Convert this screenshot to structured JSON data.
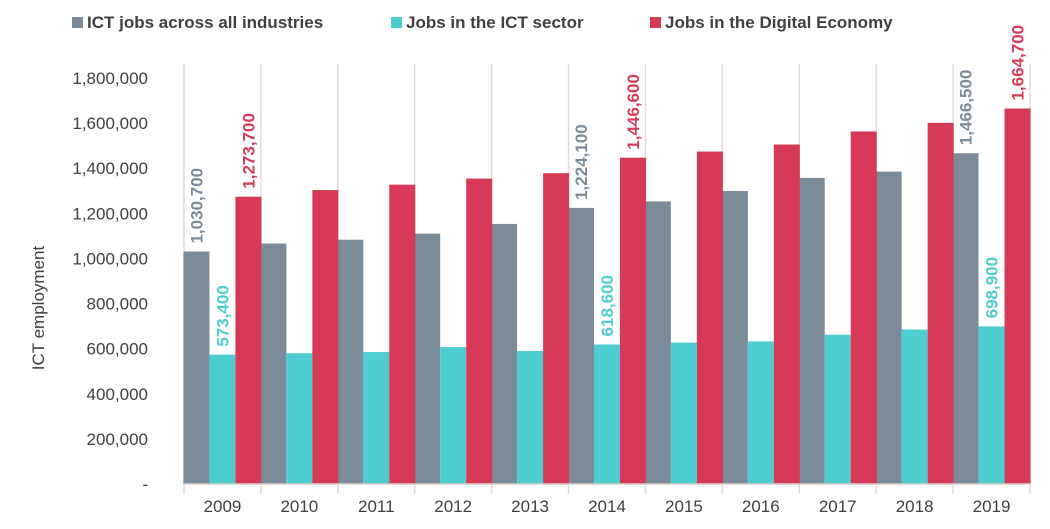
{
  "chart_data": {
    "type": "bar",
    "title": "",
    "xlabel": "",
    "ylabel": "ICT employment",
    "ylim": [
      0,
      1800000
    ],
    "yticks": [
      0,
      200000,
      400000,
      600000,
      800000,
      1000000,
      1200000,
      1400000,
      1600000,
      1800000
    ],
    "ytick_labels": [
      "-",
      "200,000",
      "400,000",
      "600,000",
      "800,000",
      "1,000,000",
      "1,200,000",
      "1,400,000",
      "1,600,000",
      "1,800,000"
    ],
    "categories": [
      "2009",
      "2010",
      "2011",
      "2012",
      "2013",
      "2014",
      "2015",
      "2016",
      "2017",
      "2018",
      "2019"
    ],
    "legend_position": "top",
    "series": [
      {
        "name": "ICT jobs across all industries",
        "color": "#7b8b9a",
        "values": [
          1030700,
          1066000,
          1083000,
          1110000,
          1153000,
          1224100,
          1253000,
          1299000,
          1357000,
          1385000,
          1466500
        ],
        "labels": {
          "0": "1,030,700",
          "5": "1,224,100",
          "10": "1,466,500"
        }
      },
      {
        "name": "Jobs in the ICT sector",
        "color": "#4ecdd0",
        "values": [
          573400,
          580000,
          585000,
          607000,
          590000,
          618600,
          627000,
          632000,
          662000,
          685000,
          698900
        ],
        "labels": {
          "0": "573,400",
          "5": "618,600",
          "10": "698,900"
        }
      },
      {
        "name": "Jobs in the Digital Economy",
        "color": "#d63a56",
        "values": [
          1273700,
          1303000,
          1327000,
          1354000,
          1378000,
          1446600,
          1474000,
          1505000,
          1563000,
          1601000,
          1664700
        ],
        "labels": {
          "0": "1,273,700",
          "5": "1,446,600",
          "10": "1,664,700"
        }
      }
    ]
  }
}
